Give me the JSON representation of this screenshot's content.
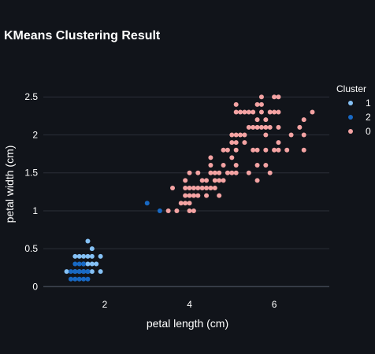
{
  "chart_data": {
    "type": "scatter",
    "title": "KMeans Clustering Result",
    "xlabel": "petal length (cm)",
    "ylabel": "petal width (cm)",
    "xlim": [
      0.55,
      7.3
    ],
    "ylim": [
      -0.12,
      2.72
    ],
    "xticks": [
      2,
      4,
      6
    ],
    "yticks": [
      0,
      0.5,
      1,
      1.5,
      2,
      2.5
    ],
    "grid": "horizontal",
    "legend": {
      "title": "Cluster",
      "placement": "top-right"
    },
    "series": [
      {
        "name": "1",
        "color": "#85c1f5",
        "points": [
          [
            1.1,
            0.2
          ],
          [
            1.4,
            0.4
          ],
          [
            1.5,
            0.4
          ],
          [
            1.6,
            0.6
          ],
          [
            1.5,
            0.3
          ],
          [
            1.7,
            0.5
          ],
          [
            1.9,
            0.2
          ],
          [
            1.9,
            0.4
          ],
          [
            1.7,
            0.4
          ],
          [
            1.6,
            0.4
          ],
          [
            1.8,
            0.3
          ],
          [
            1.3,
            0.4
          ],
          [
            1.7,
            0.3
          ],
          [
            1.6,
            0.2
          ],
          [
            1.5,
            0.2
          ],
          [
            1.4,
            0.2
          ],
          [
            1.3,
            0.2
          ],
          [
            1.7,
            0.2
          ],
          [
            1.6,
            0.3
          ]
        ]
      },
      {
        "name": "2",
        "color": "#1869c4",
        "points": [
          [
            1.2,
            0.2
          ],
          [
            1.3,
            0.2
          ],
          [
            1.4,
            0.2
          ],
          [
            1.5,
            0.2
          ],
          [
            1.3,
            0.3
          ],
          [
            1.4,
            0.3
          ],
          [
            1.5,
            0.1
          ],
          [
            1.4,
            0.1
          ],
          [
            1.6,
            0.1
          ],
          [
            1.2,
            0.1
          ],
          [
            1.3,
            0.1
          ],
          [
            1.6,
            0.2
          ],
          [
            1.5,
            0.3
          ],
          [
            3.0,
            1.1
          ],
          [
            3.3,
            1.0
          ]
        ]
      },
      {
        "name": "0",
        "color": "#f4a3a3",
        "points": [
          [
            3.5,
            1.0
          ],
          [
            3.7,
            1.0
          ],
          [
            3.9,
            1.1
          ],
          [
            4.0,
            1.0
          ],
          [
            4.1,
            1.0
          ],
          [
            3.6,
            1.3
          ],
          [
            4.0,
            1.1
          ],
          [
            3.8,
            1.1
          ],
          [
            3.9,
            1.2
          ],
          [
            4.0,
            1.2
          ],
          [
            4.1,
            1.2
          ],
          [
            4.2,
            1.2
          ],
          [
            4.0,
            1.3
          ],
          [
            4.1,
            1.3
          ],
          [
            4.2,
            1.3
          ],
          [
            4.3,
            1.3
          ],
          [
            4.4,
            1.3
          ],
          [
            4.5,
            1.3
          ],
          [
            4.7,
            1.4
          ],
          [
            3.9,
            1.4
          ],
          [
            4.4,
            1.4
          ],
          [
            4.6,
            1.4
          ],
          [
            4.7,
            1.2
          ],
          [
            4.5,
            1.5
          ],
          [
            4.6,
            1.5
          ],
          [
            4.9,
            1.5
          ],
          [
            4.7,
            1.5
          ],
          [
            5.0,
            1.5
          ],
          [
            4.2,
            1.5
          ],
          [
            5.1,
            1.5
          ],
          [
            4.5,
            1.6
          ],
          [
            4.8,
            1.4
          ],
          [
            4.4,
            1.2
          ],
          [
            4.5,
            1.7
          ],
          [
            4.8,
            1.8
          ],
          [
            4.9,
            1.8
          ],
          [
            5.0,
            1.7
          ],
          [
            5.1,
            1.6
          ],
          [
            4.8,
            1.6
          ],
          [
            4.0,
            1.5
          ],
          [
            3.9,
            1.3
          ],
          [
            4.3,
            1.4
          ],
          [
            4.6,
            1.3
          ],
          [
            5.6,
            1.4
          ],
          [
            5.5,
            1.8
          ],
          [
            5.1,
            1.8
          ],
          [
            5.6,
            1.8
          ],
          [
            5.8,
            1.8
          ],
          [
            6.1,
            1.8
          ],
          [
            5.5,
            2.1
          ],
          [
            5.6,
            2.1
          ],
          [
            5.7,
            2.1
          ],
          [
            5.8,
            2.1
          ],
          [
            5.9,
            2.1
          ],
          [
            5.2,
            2.0
          ],
          [
            5.0,
            2.0
          ],
          [
            5.1,
            2.0
          ],
          [
            5.3,
            2.0
          ],
          [
            5.1,
            1.9
          ],
          [
            5.0,
            1.9
          ],
          [
            5.3,
            1.9
          ],
          [
            5.4,
            2.1
          ],
          [
            5.6,
            2.2
          ],
          [
            5.7,
            2.3
          ],
          [
            5.8,
            2.2
          ],
          [
            5.1,
            2.3
          ],
          [
            5.2,
            2.3
          ],
          [
            5.3,
            2.3
          ],
          [
            5.4,
            2.3
          ],
          [
            5.5,
            2.3
          ],
          [
            5.1,
            2.4
          ],
          [
            5.6,
            2.4
          ],
          [
            5.9,
            2.3
          ],
          [
            6.0,
            2.3
          ],
          [
            6.1,
            2.3
          ],
          [
            5.7,
            2.5
          ],
          [
            6.0,
            2.5
          ],
          [
            6.1,
            2.5
          ],
          [
            5.6,
            1.6
          ],
          [
            5.8,
            1.6
          ],
          [
            6.0,
            1.8
          ],
          [
            6.3,
            1.8
          ],
          [
            6.1,
            1.9
          ],
          [
            6.1,
            2.1
          ],
          [
            6.4,
            2.0
          ],
          [
            6.6,
            2.1
          ],
          [
            6.7,
            2.0
          ],
          [
            6.7,
            2.2
          ],
          [
            6.9,
            2.3
          ],
          [
            6.7,
            1.8
          ],
          [
            5.4,
            1.5
          ],
          [
            5.7,
            2.4
          ],
          [
            5.9,
            1.5
          ],
          [
            5.8,
            2.0
          ]
        ]
      }
    ]
  }
}
